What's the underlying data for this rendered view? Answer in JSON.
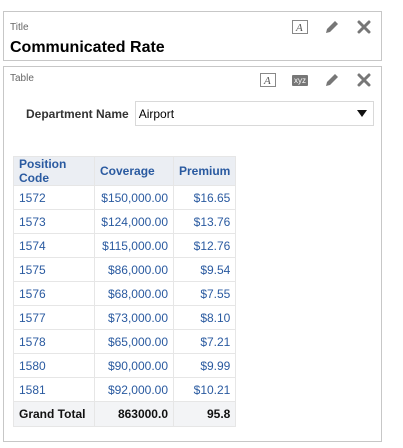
{
  "title_panel": {
    "section_label": "Title",
    "title": "Communicated Rate"
  },
  "table_panel": {
    "section_label": "Table",
    "filter": {
      "label": "Department Name",
      "selected": "Airport"
    },
    "columns": [
      "Position Code",
      "Coverage",
      "Premium"
    ],
    "rows": [
      {
        "code": "1572",
        "coverage": "$150,000.00",
        "premium": "$16.65"
      },
      {
        "code": "1573",
        "coverage": "$124,000.00",
        "premium": "$13.76"
      },
      {
        "code": "1574",
        "coverage": "$115,000.00",
        "premium": "$12.76"
      },
      {
        "code": "1575",
        "coverage": "$86,000.00",
        "premium": "$9.54"
      },
      {
        "code": "1576",
        "coverage": "$68,000.00",
        "premium": "$7.55"
      },
      {
        "code": "1577",
        "coverage": "$73,000.00",
        "premium": "$8.10"
      },
      {
        "code": "1578",
        "coverage": "$65,000.00",
        "premium": "$7.21"
      },
      {
        "code": "1580",
        "coverage": "$90,000.00",
        "premium": "$9.99"
      },
      {
        "code": "1581",
        "coverage": "$92,000.00",
        "premium": "$10.21"
      }
    ],
    "total": {
      "label": "Grand Total",
      "coverage": "863000.0",
      "premium": "95.8"
    }
  },
  "tools": {
    "format_label": "A",
    "xyz_label": "xyz"
  },
  "colors": {
    "link": "#2a5aa0",
    "header_bg": "#ebeef3",
    "border": "#c7c7c7"
  }
}
